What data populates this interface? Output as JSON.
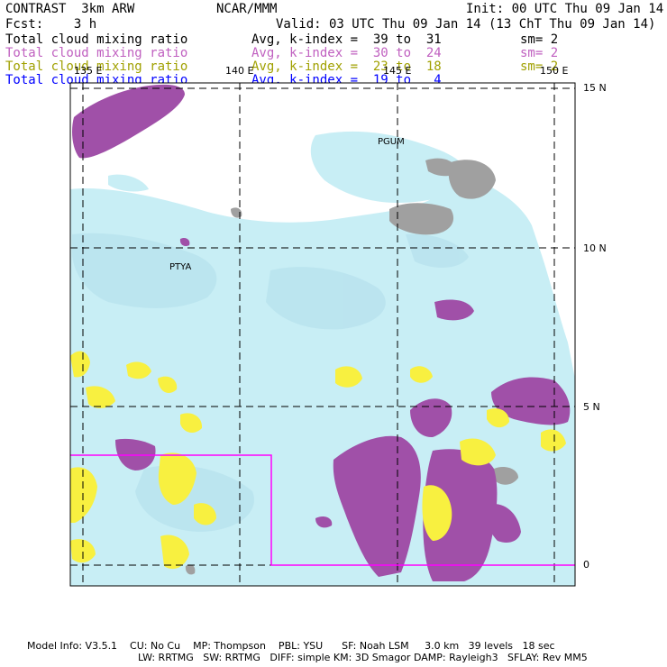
{
  "header": {
    "model": "CONTRAST  3km ARW",
    "org": "NCAR/MMM",
    "init": "Init: 00 UTC Thu 09 Jan 14",
    "fcst": "Fcst:    3 h",
    "valid": "Valid: 03 UTC Thu 09 Jan 14 (13 ChT Thu 09 Jan 14)"
  },
  "fields": [
    {
      "name": "Total cloud mixing ratio",
      "range": "Avg, k-index =  39 to  31",
      "sm": "sm= 2",
      "color": "#000000"
    },
    {
      "name": "Total cloud mixing ratio",
      "range": "Avg, k-index =  30 to  24",
      "sm": "sm= 2",
      "color": "#c060c0"
    },
    {
      "name": "Total cloud mixing ratio",
      "range": "Avg, k-index =  23 to  18",
      "sm": "sm= 2",
      "color": "#a0a000"
    },
    {
      "name": "Total cloud mixing ratio",
      "range": "Avg, k-index =  19 to   4",
      "sm": "",
      "color": "#0000ff"
    }
  ],
  "map": {
    "lon_labels": [
      "135 E",
      "140 E",
      "145 E",
      "150 E"
    ],
    "lat_labels": [
      "15 N",
      "10 N",
      "5 N",
      "0"
    ],
    "stations": [
      "PGUM",
      "PTYA"
    ],
    "colors": {
      "light_blue": "#c8eef5",
      "purple": "#a050a8",
      "yellow": "#f8f040",
      "gray": "#a0a0a0",
      "magenta_box": "#ff00ff"
    }
  },
  "footer": {
    "line1": "Model Info: V3.5.1    CU: No Cu    MP: Thompson    PBL: YSU      SF: Noah LSM     3.0 km   39 levels   18 sec",
    "line2": "LW: RRTMG   SW: RRTMG   DIFF: simple KM: 3D Smagor DAMP: Rayleigh3   SFLAY: Rev MM5"
  }
}
